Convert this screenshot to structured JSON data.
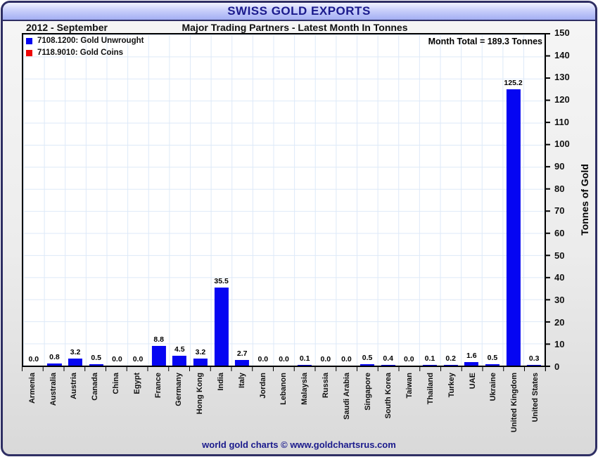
{
  "header": {
    "title": "SWISS GOLD EXPORTS"
  },
  "subheader": {
    "period": "2012 - September",
    "subtitle": "Major Trading Partners - Latest Month In Tonnes"
  },
  "legend": [
    {
      "label": "7108.1200: Gold Unwrought",
      "color": "#0505f2"
    },
    {
      "label": "7118.9010: Gold Coins",
      "color": "#ee0606"
    }
  ],
  "annotation": {
    "month_total": "Month Total = 189.3 Tonnes"
  },
  "footer": {
    "credit": "world gold charts © www.goldchartsrus.com"
  },
  "chart_data": {
    "type": "bar",
    "title": "SWISS GOLD EXPORTS",
    "subtitle": "Major Trading Partners - Latest Month In Tonnes",
    "categories": [
      "Armenia",
      "Australia",
      "Austria",
      "Canada",
      "China",
      "Egypt",
      "France",
      "Germany",
      "Hong Kong",
      "India",
      "Italy",
      "Jordan",
      "Lebanon",
      "Malaysia",
      "Russia",
      "Saudi Arabia",
      "Singapore",
      "South Korea",
      "Taiwan",
      "Thailand",
      "Turkey",
      "UAE",
      "Ukraine",
      "United Kingdom",
      "United States"
    ],
    "series": [
      {
        "name": "7108.1200: Gold Unwrought",
        "color": "#0505f2",
        "values": [
          0.0,
          0.8,
          3.2,
          0.5,
          0.0,
          0.0,
          8.8,
          4.5,
          3.2,
          35.5,
          2.7,
          0.0,
          0.0,
          0.1,
          0.0,
          0.0,
          0.5,
          0.4,
          0.0,
          0.1,
          0.2,
          1.6,
          0.5,
          125.2,
          0.3
        ]
      }
    ],
    "bar_labels": [
      "0.0",
      "0.8",
      "3.2",
      "0.5",
      "0.0",
      "0.0",
      "8.8",
      "4.5",
      "3.2",
      "35.5",
      "2.7",
      "0.0",
      "0.0",
      "0.1",
      "0.0",
      "0.0",
      "0.5",
      "0.4",
      "0.0",
      "0.1",
      "0.2",
      "1.6",
      "0.5",
      "125.2",
      "0.3"
    ],
    "xlabel": "",
    "ylabel": "Tonnes of Gold",
    "ylim": [
      0,
      150
    ],
    "yticks": [
      0,
      10,
      20,
      30,
      40,
      50,
      60,
      70,
      80,
      90,
      100,
      110,
      120,
      130,
      140,
      150
    ],
    "grid": true,
    "legend_position": "top-left",
    "month_total_tonnes": 189.3
  }
}
